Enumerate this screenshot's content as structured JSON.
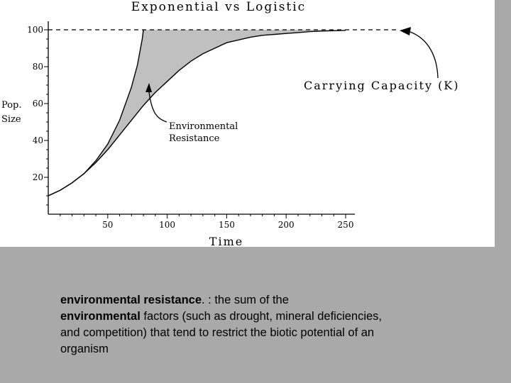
{
  "chart_data": {
    "type": "line",
    "title": "Exponential vs Logistic",
    "xlabel": "Time",
    "ylabel": [
      "Pop.",
      "Size"
    ],
    "xlim": [
      0,
      250
    ],
    "ylim": [
      0,
      100
    ],
    "x_ticks": [
      50,
      100,
      150,
      200,
      250
    ],
    "y_ticks": [
      20,
      40,
      60,
      80,
      100
    ],
    "carrying_capacity": 100,
    "series": [
      {
        "name": "",
        "curve": "exponential",
        "color": "#000000",
        "points": [
          [
            0,
            10
          ],
          [
            10,
            13
          ],
          [
            20,
            17
          ],
          [
            30,
            22
          ],
          [
            40,
            29
          ],
          [
            50,
            38
          ],
          [
            60,
            51
          ],
          [
            70,
            69
          ],
          [
            75,
            81
          ],
          [
            79,
            95
          ],
          [
            80,
            100
          ]
        ]
      },
      {
        "name": "",
        "curve": "logistic",
        "color": "#000000",
        "points": [
          [
            0,
            10
          ],
          [
            10,
            13
          ],
          [
            20,
            17
          ],
          [
            30,
            22
          ],
          [
            40,
            28
          ],
          [
            50,
            35
          ],
          [
            60,
            43
          ],
          [
            70,
            51
          ],
          [
            80,
            59
          ],
          [
            90,
            66
          ],
          [
            100,
            72
          ],
          [
            110,
            78
          ],
          [
            120,
            83
          ],
          [
            130,
            87
          ],
          [
            140,
            90
          ],
          [
            150,
            93
          ],
          [
            160,
            94.5
          ],
          [
            170,
            96
          ],
          [
            180,
            97
          ],
          [
            190,
            97.5
          ],
          [
            200,
            98
          ],
          [
            210,
            98.5
          ],
          [
            220,
            99
          ],
          [
            230,
            99.3
          ],
          [
            240,
            99.5
          ],
          [
            250,
            99.7
          ]
        ]
      }
    ],
    "shaded_region": {
      "label_lines": [
        "Environmental",
        "Resistance"
      ],
      "fill": "#c0c0c0"
    },
    "annotations": [
      {
        "text": "Carrying Capacity (K)"
      }
    ]
  },
  "caption": {
    "line1_bold": "environmental resistance",
    "line1_rest": ". : the sum of the",
    "line2_bold": "environmental",
    "line2_rest": " factors (such as drought, mineral deficiencies,",
    "line3": "and competition) that tend to restrict the biotic potential of an",
    "line4": "organism"
  },
  "colors": {
    "page_bg": "#a9a9a9",
    "panel_bg": "#ffffff",
    "shade": "#c0c0c0"
  }
}
